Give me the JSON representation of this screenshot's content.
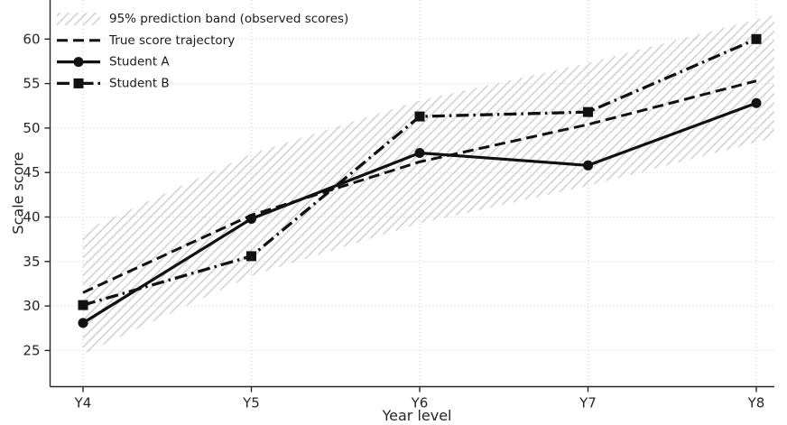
{
  "chart_data": {
    "type": "line",
    "title": "",
    "xlabel": "Year level",
    "ylabel": "Scale score",
    "categories": [
      "Y4",
      "Y5",
      "Y6",
      "Y7",
      "Y8"
    ],
    "y_ticks": [
      25,
      30,
      35,
      40,
      45,
      50,
      55,
      60
    ],
    "ylim": [
      21,
      64.4
    ],
    "grid": {
      "style": "dotted",
      "axes": "both"
    },
    "legend": {
      "position": "upper-left",
      "frame": false
    },
    "band": {
      "label": "95% prediction band (observed scores)",
      "pattern": "diagonal-hatch",
      "upper": [
        38.4,
        47.1,
        53.1,
        57.3,
        62.2
      ],
      "lower": [
        24.6,
        33.4,
        39.3,
        43.5,
        48.4
      ],
      "right_edge_upper": 62.7,
      "right_edge_lower": 48.9
    },
    "series": [
      {
        "name": "True score trajectory",
        "line_style": "dashed",
        "marker": "none",
        "color": "#111111",
        "values": [
          31.5,
          40.2,
          46.2,
          50.4,
          55.3
        ]
      },
      {
        "name": "Student A",
        "line_style": "solid",
        "marker": "circle",
        "color": "#111111",
        "values": [
          28.1,
          39.8,
          47.2,
          45.8,
          52.8
        ]
      },
      {
        "name": "Student B",
        "line_style": "dashdot",
        "marker": "square",
        "color": "#111111",
        "values": [
          30.1,
          35.6,
          51.3,
          51.8,
          60.0
        ]
      }
    ],
    "colors": {
      "line": "#111111",
      "hatch": "#c9c9c9",
      "grid": "#cccccc",
      "text": "#262626",
      "spine": "#262626",
      "background": "#ffffff"
    }
  }
}
